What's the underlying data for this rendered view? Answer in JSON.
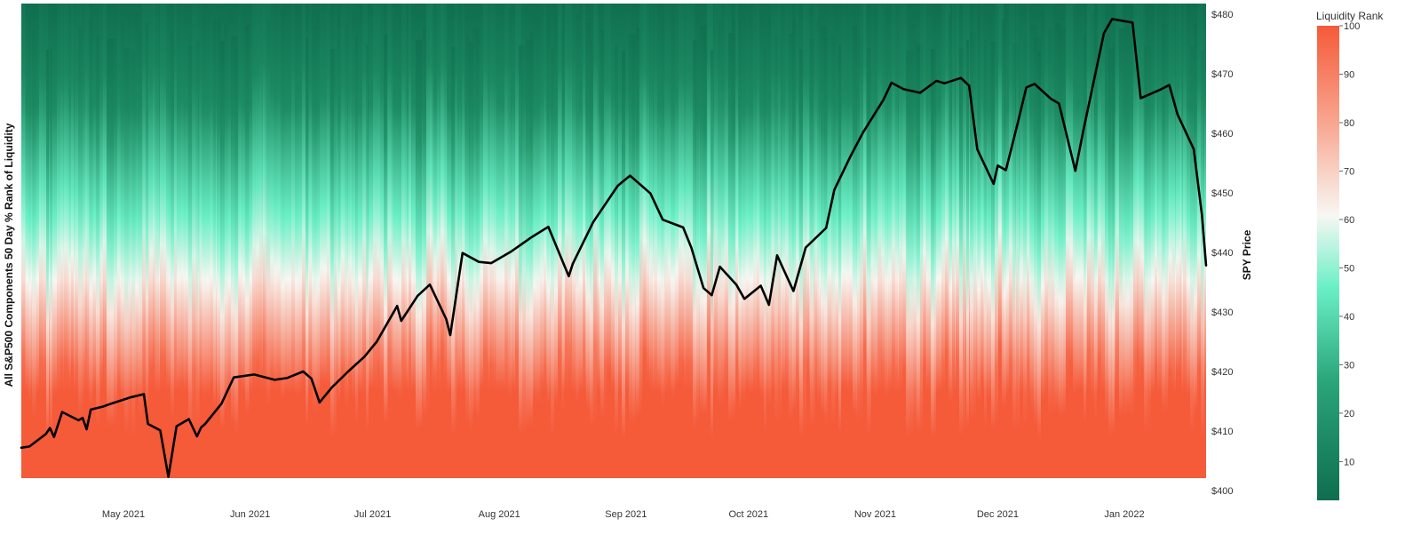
{
  "chart_data": {
    "type": "heatmap",
    "ylabel_left": "All S&P500 Components 50 Day % Rank of Liquidity",
    "ylabel_right": "SPY Price",
    "x_ticks": [
      "May 2021",
      "Jun 2021",
      "Jul 2021",
      "Aug 2021",
      "Sep 2021",
      "Oct 2021",
      "Nov 2021",
      "Dec 2021",
      "Jan 2022"
    ],
    "y_right_ticks": [
      "$480",
      "$470",
      "$460",
      "$450",
      "$440",
      "$430",
      "$420",
      "$410",
      "$400"
    ],
    "y_right_range": [
      400,
      481
    ],
    "colorbar": {
      "title": "Liquidity Rank",
      "range": [
        2,
        100
      ],
      "ticks": [
        "100",
        "90",
        "80",
        "70",
        "60",
        "50",
        "40",
        "30",
        "20",
        "10"
      ],
      "low_color": "#0f6e4f",
      "mid_low_color": "#6bf0c6",
      "mid_color": "#f7f7f3",
      "high_color": "#f55a39"
    },
    "x_date_range": [
      "2021-04-06",
      "2022-01-21"
    ],
    "series": [
      {
        "name": "SPY Price",
        "color": "#000000",
        "x": [
          "2021-04-06",
          "2021-04-08",
          "2021-04-12",
          "2021-04-13",
          "2021-04-14",
          "2021-04-16",
          "2021-04-20",
          "2021-04-21",
          "2021-04-22",
          "2021-04-23",
          "2021-04-26",
          "2021-04-28",
          "2021-05-03",
          "2021-05-06",
          "2021-05-07",
          "2021-05-10",
          "2021-05-12",
          "2021-05-14",
          "2021-05-17",
          "2021-05-19",
          "2021-05-20",
          "2021-05-21",
          "2021-05-25",
          "2021-05-28",
          "2021-06-02",
          "2021-06-07",
          "2021-06-10",
          "2021-06-14",
          "2021-06-16",
          "2021-06-18",
          "2021-06-21",
          "2021-06-25",
          "2021-06-29",
          "2021-07-02",
          "2021-07-07",
          "2021-07-08",
          "2021-07-12",
          "2021-07-15",
          "2021-07-19",
          "2021-07-20",
          "2021-07-23",
          "2021-07-27",
          "2021-07-30",
          "2021-08-04",
          "2021-08-09",
          "2021-08-13",
          "2021-08-18",
          "2021-08-19",
          "2021-08-24",
          "2021-08-30",
          "2021-09-02",
          "2021-09-07",
          "2021-09-10",
          "2021-09-15",
          "2021-09-17",
          "2021-09-20",
          "2021-09-22",
          "2021-09-24",
          "2021-09-28",
          "2021-09-30",
          "2021-10-04",
          "2021-10-06",
          "2021-10-08",
          "2021-10-12",
          "2021-10-15",
          "2021-10-20",
          "2021-10-22",
          "2021-10-26",
          "2021-10-29",
          "2021-11-03",
          "2021-11-05",
          "2021-11-08",
          "2021-11-10",
          "2021-11-12",
          "2021-11-16",
          "2021-11-18",
          "2021-11-22",
          "2021-11-24",
          "2021-11-26",
          "2021-11-30",
          "2021-12-01",
          "2021-12-03",
          "2021-12-06",
          "2021-12-08",
          "2021-12-10",
          "2021-12-14",
          "2021-12-16",
          "2021-12-20",
          "2021-12-22",
          "2021-12-27",
          "2021-12-29",
          "2022-01-03",
          "2022-01-05",
          "2022-01-10",
          "2022-01-12",
          "2022-01-14",
          "2022-01-18",
          "2022-01-20",
          "2022-01-21"
        ],
        "y": [
          407.2,
          407.4,
          409.5,
          410.5,
          409.0,
          413.2,
          411.8,
          412.2,
          410.3,
          413.6,
          414.1,
          414.6,
          415.7,
          416.2,
          411.2,
          410.1,
          402.3,
          410.8,
          412.0,
          409.1,
          410.6,
          411.2,
          414.6,
          419.0,
          419.5,
          418.6,
          418.9,
          420.0,
          418.8,
          414.8,
          417.3,
          420.0,
          422.5,
          425.0,
          431.0,
          428.5,
          432.7,
          434.6,
          428.8,
          426.1,
          439.9,
          438.4,
          438.2,
          440.2,
          442.6,
          444.3,
          436.0,
          438.1,
          445.1,
          451.2,
          452.9,
          449.9,
          445.5,
          444.2,
          440.8,
          434.0,
          432.8,
          437.6,
          434.6,
          432.2,
          434.4,
          431.2,
          439.5,
          433.5,
          440.8,
          444.1,
          450.5,
          456.2,
          460.1,
          465.6,
          468.5,
          467.4,
          467.1,
          466.8,
          468.8,
          468.4,
          469.3,
          468.0,
          457.3,
          451.5,
          454.6,
          453.8,
          462.0,
          467.7,
          468.3,
          465.8,
          465.0,
          453.7,
          460.6,
          476.8,
          479.2,
          478.6,
          465.9,
          467.4,
          468.1,
          463.2,
          457.3,
          446.2,
          437.8
        ]
      }
    ],
    "grid": false,
    "legend": "colorbar right"
  }
}
